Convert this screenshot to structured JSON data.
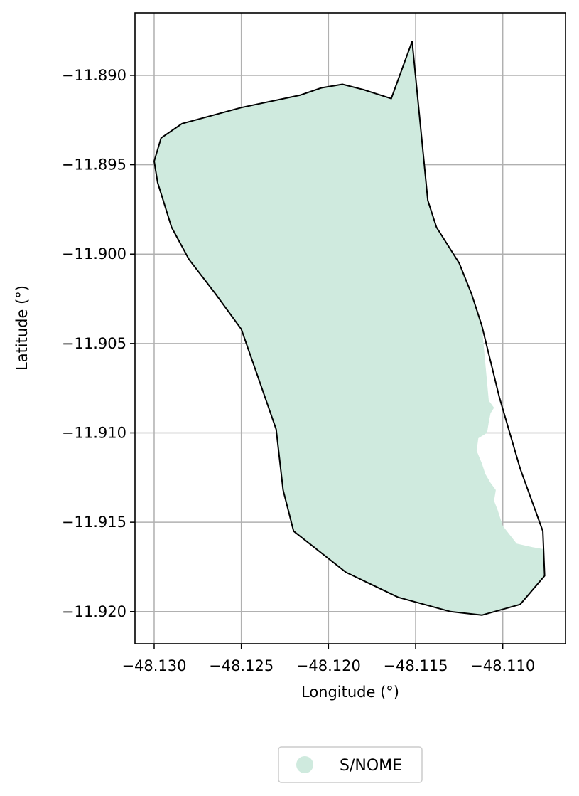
{
  "chart_data": {
    "type": "map",
    "xlabel": "Longitude (°)",
    "ylabel": "Latitude (°)",
    "xlim": [
      -48.1311,
      -48.1064
    ],
    "ylim": [
      -11.9218,
      -11.8865
    ],
    "grid": true,
    "x_ticks": [
      -48.13,
      -48.125,
      -48.12,
      -48.115,
      -48.11
    ],
    "x_tick_labels": [
      "−48.130",
      "−48.125",
      "−48.120",
      "−48.115",
      "−48.110"
    ],
    "y_ticks": [
      -11.89,
      -11.895,
      -11.9,
      -11.905,
      -11.91,
      -11.915,
      -11.92
    ],
    "y_tick_labels": [
      "−11.890",
      "−11.895",
      "−11.900",
      "−11.905",
      "−11.910",
      "−11.915",
      "−11.920"
    ],
    "legend": {
      "placement": "bottom-center",
      "entries": [
        {
          "label": "S/NOME",
          "color": "#cfeade"
        }
      ]
    },
    "colors": {
      "fill": "#cfeade",
      "outline": "#000000",
      "grid": "#b0b0b0"
    },
    "outline": [
      [
        -48.1152,
        -11.8881
      ],
      [
        -48.1164,
        -11.8913
      ],
      [
        -48.118,
        -11.8908
      ],
      [
        -48.1192,
        -11.8905
      ],
      [
        -48.1204,
        -11.8907
      ],
      [
        -48.1216,
        -11.8911
      ],
      [
        -48.125,
        -11.8918
      ],
      [
        -48.1284,
        -11.8927
      ],
      [
        -48.1296,
        -11.8935
      ],
      [
        -48.13,
        -11.8948
      ],
      [
        -48.1298,
        -11.896
      ],
      [
        -48.129,
        -11.8985
      ],
      [
        -48.128,
        -11.9003
      ],
      [
        -48.1265,
        -11.9022
      ],
      [
        -48.125,
        -11.9042
      ],
      [
        -48.124,
        -11.907
      ],
      [
        -48.123,
        -11.9098
      ],
      [
        -48.1226,
        -11.9132
      ],
      [
        -48.122,
        -11.9155
      ],
      [
        -48.119,
        -11.9178
      ],
      [
        -48.116,
        -11.9192
      ],
      [
        -48.113,
        -11.92
      ],
      [
        -48.1112,
        -11.9202
      ],
      [
        -48.109,
        -11.9196
      ],
      [
        -48.1076,
        -11.918
      ],
      [
        -48.1077,
        -11.9155
      ],
      [
        -48.109,
        -11.912
      ],
      [
        -48.1102,
        -11.908
      ],
      [
        -48.1112,
        -11.904
      ],
      [
        -48.1118,
        -11.9022
      ],
      [
        -48.1125,
        -11.9005
      ],
      [
        -48.1138,
        -11.8985
      ],
      [
        -48.1143,
        -11.897
      ],
      [
        -48.1152,
        -11.8881
      ]
    ],
    "fill_polygon": [
      [
        -48.1152,
        -11.8881
      ],
      [
        -48.1164,
        -11.8913
      ],
      [
        -48.118,
        -11.8908
      ],
      [
        -48.1192,
        -11.8905
      ],
      [
        -48.1204,
        -11.8907
      ],
      [
        -48.1216,
        -11.8911
      ],
      [
        -48.125,
        -11.8918
      ],
      [
        -48.1284,
        -11.8927
      ],
      [
        -48.1296,
        -11.8935
      ],
      [
        -48.13,
        -11.8948
      ],
      [
        -48.1298,
        -11.896
      ],
      [
        -48.129,
        -11.8985
      ],
      [
        -48.128,
        -11.9003
      ],
      [
        -48.1265,
        -11.9022
      ],
      [
        -48.125,
        -11.9042
      ],
      [
        -48.124,
        -11.907
      ],
      [
        -48.123,
        -11.9098
      ],
      [
        -48.1226,
        -11.9132
      ],
      [
        -48.122,
        -11.9155
      ],
      [
        -48.119,
        -11.9178
      ],
      [
        -48.116,
        -11.9192
      ],
      [
        -48.113,
        -11.92
      ],
      [
        -48.1112,
        -11.9202
      ],
      [
        -48.109,
        -11.9196
      ],
      [
        -48.1076,
        -11.918
      ],
      [
        -48.1077,
        -11.9165
      ],
      [
        -48.1083,
        -11.9164
      ],
      [
        -48.1092,
        -11.9162
      ],
      [
        -48.11,
        -11.9152
      ],
      [
        -48.1103,
        -11.9143
      ],
      [
        -48.1105,
        -11.9138
      ],
      [
        -48.1104,
        -11.9132
      ],
      [
        -48.1107,
        -11.9128
      ],
      [
        -48.111,
        -11.9123
      ],
      [
        -48.1112,
        -11.9117
      ],
      [
        -48.1115,
        -11.911
      ],
      [
        -48.1114,
        -11.9103
      ],
      [
        -48.1109,
        -11.91
      ],
      [
        -48.1108,
        -11.9094
      ],
      [
        -48.1107,
        -11.9089
      ],
      [
        -48.1105,
        -11.9086
      ],
      [
        -48.1108,
        -11.9082
      ],
      [
        -48.1112,
        -11.904
      ],
      [
        -48.1118,
        -11.9022
      ],
      [
        -48.1125,
        -11.9005
      ],
      [
        -48.1138,
        -11.8985
      ],
      [
        -48.1143,
        -11.897
      ],
      [
        -48.1152,
        -11.8881
      ]
    ]
  }
}
